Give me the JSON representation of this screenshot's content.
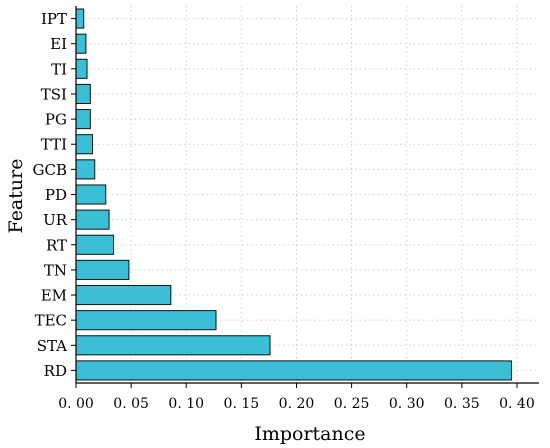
{
  "chart_data": {
    "type": "bar",
    "orientation": "horizontal",
    "categories": [
      "IPT",
      "EI",
      "TI",
      "TSI",
      "PG",
      "TTI",
      "GCB",
      "PD",
      "UR",
      "RT",
      "TN",
      "EM",
      "TEC",
      "STA",
      "RD"
    ],
    "values": [
      0.007,
      0.009,
      0.01,
      0.013,
      0.013,
      0.015,
      0.017,
      0.027,
      0.03,
      0.034,
      0.048,
      0.086,
      0.127,
      0.176,
      0.395
    ],
    "xlabel": "Importance",
    "ylabel": "Feature",
    "xlim": [
      0.0,
      0.42
    ],
    "xticks": [
      "0. 00",
      "0. 05",
      "0. 10",
      "0. 15",
      "0. 20",
      "0. 25",
      "0. 30",
      "0. 35",
      "0. 40"
    ],
    "xtick_values": [
      0.0,
      0.05,
      0.1,
      0.15,
      0.2,
      0.25,
      0.3,
      0.35,
      0.4
    ],
    "grid": true,
    "legend": "none",
    "colors": {
      "bar": "#3bbfd6",
      "bar_edge": "#111111",
      "grid": "#d0d0d0",
      "axis": "#000000"
    }
  }
}
